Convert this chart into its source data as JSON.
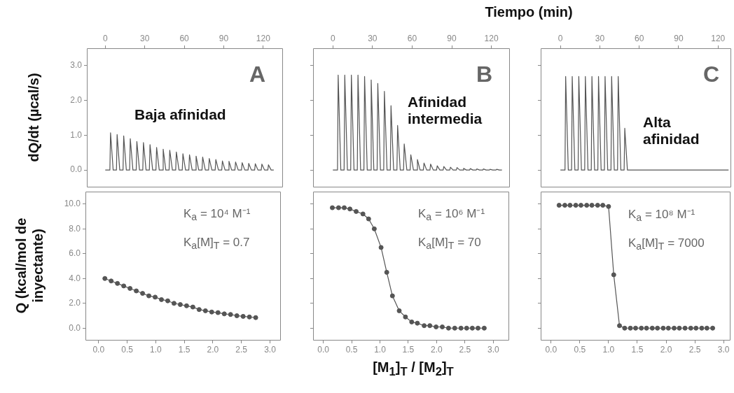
{
  "chart_data": [
    {
      "type": "line",
      "ylabel": "dQ/dt (µcal/s)",
      "annotations": [
        "A",
        "Baja afinidad"
      ],
      "xlim": [
        -14,
        135
      ],
      "xticks": [
        0,
        30,
        60,
        90,
        120
      ],
      "ylim": [
        -0.5,
        3.5
      ],
      "yticks": [
        {
          "value": 0,
          "label": "0.0"
        },
        {
          "value": 1,
          "label": "1.0"
        },
        {
          "value": 2,
          "label": "2.0"
        },
        {
          "value": 3,
          "label": "3.0"
        }
      ],
      "marker": "none",
      "grid": false,
      "series": [
        {
          "color": "#555555",
          "x": [
            0,
            3.5,
            4,
            6,
            8.5,
            9,
            11,
            13.5,
            14,
            16,
            18.5,
            19,
            21,
            23.5,
            24,
            26,
            28.5,
            29,
            31,
            33.5,
            34,
            36,
            38.5,
            39,
            41,
            43.5,
            44,
            46,
            48.5,
            49,
            51,
            53.5,
            54,
            56,
            58.5,
            59,
            61,
            63.5,
            64,
            66,
            68.5,
            69,
            71,
            73.5,
            74,
            76,
            78.5,
            79,
            81,
            83.5,
            84,
            86,
            88.5,
            89,
            91,
            93.5,
            94,
            96,
            98.5,
            99,
            101,
            103.5,
            104,
            106,
            108.5,
            109,
            111,
            113.5,
            114,
            116,
            118.5,
            119,
            121,
            123.5,
            124,
            126,
            128
          ],
          "values": [
            0,
            0,
            1.07,
            0,
            0,
            1.02,
            0,
            0,
            0.98,
            0,
            0,
            0.9,
            0,
            0,
            0.82,
            0,
            0,
            0.79,
            0,
            0,
            0.73,
            0,
            0,
            0.65,
            0,
            0,
            0.6,
            0,
            0,
            0.57,
            0,
            0,
            0.52,
            0,
            0,
            0.47,
            0,
            0,
            0.44,
            0,
            0,
            0.4,
            0,
            0,
            0.37,
            0,
            0,
            0.33,
            0,
            0,
            0.3,
            0,
            0,
            0.26,
            0,
            0,
            0.25,
            0,
            0,
            0.23,
            0,
            0,
            0.21,
            0,
            0,
            0.19,
            0,
            0,
            0.18,
            0,
            0,
            0.17,
            0,
            0,
            0.15,
            0,
            0
          ]
        }
      ]
    },
    {
      "type": "line",
      "xlabel": "Tiempo (min)",
      "annotations": [
        "B",
        "Afinidad intermedia"
      ],
      "xlim": [
        -15,
        134
      ],
      "xticks": [
        0,
        30,
        60,
        90,
        120
      ],
      "ylim": [
        -0.5,
        3.5
      ],
      "yticks": [
        {
          "value": 0,
          "label": null
        },
        {
          "value": 1,
          "label": null
        },
        {
          "value": 2,
          "label": null
        },
        {
          "value": 3,
          "label": null
        }
      ],
      "tick_labels": "x",
      "marker": "none",
      "grid": false,
      "series": [
        {
          "color": "#555555",
          "x": [
            0,
            3.5,
            4,
            6,
            8.5,
            9,
            11,
            13.5,
            14,
            16,
            18.5,
            19,
            21,
            23.5,
            24,
            26,
            28.5,
            29,
            31,
            33.5,
            34,
            36,
            38.5,
            39,
            41,
            43.5,
            44,
            46,
            48.5,
            49,
            51,
            53.5,
            54,
            56,
            58.5,
            59,
            61,
            63.5,
            64,
            66,
            68.5,
            69,
            71,
            73.5,
            74,
            76,
            78.5,
            79,
            81,
            83.5,
            84,
            86,
            88.5,
            89,
            91,
            93.5,
            94,
            96,
            98.5,
            99,
            101,
            103.5,
            104,
            106,
            108.5,
            109,
            111,
            113.5,
            114,
            116,
            118.5,
            119,
            121,
            123.5,
            124,
            126,
            128
          ],
          "values": [
            0,
            0,
            2.73,
            0,
            0,
            2.73,
            0,
            0,
            2.73,
            0,
            0,
            2.73,
            0,
            0,
            2.69,
            0,
            0,
            2.59,
            0,
            0,
            2.49,
            0,
            0,
            2.26,
            0,
            0,
            1.85,
            0,
            0,
            1.28,
            0,
            0,
            0.75,
            0,
            0,
            0.44,
            0,
            0,
            0.3,
            0,
            0,
            0.2,
            0,
            0,
            0.17,
            0,
            0,
            0.12,
            0,
            0,
            0.1,
            0,
            0,
            0.08,
            0,
            0,
            0.07,
            0,
            0,
            0.05,
            0,
            0,
            0.04,
            0,
            0,
            0.03,
            0,
            0,
            0.03,
            0,
            0,
            0.02,
            0,
            0,
            0.02,
            0,
            0
          ]
        }
      ]
    },
    {
      "type": "line",
      "annotations": [
        "C",
        "Alta afinidad"
      ],
      "xlim": [
        -15,
        130
      ],
      "xticks": [
        0,
        30,
        60,
        90,
        120
      ],
      "ylim": [
        -0.5,
        3.5
      ],
      "yticks": [
        {
          "value": 0,
          "label": null
        },
        {
          "value": 1,
          "label": null
        },
        {
          "value": 2,
          "label": null
        },
        {
          "value": 3,
          "label": null
        }
      ],
      "tick_labels": "x",
      "marker": "none",
      "grid": false,
      "series": [
        {
          "color": "#555555",
          "x": [
            0,
            3.5,
            4,
            6,
            8.5,
            9,
            11,
            13.5,
            14,
            16,
            18.5,
            19,
            21,
            23.5,
            24,
            26,
            28.5,
            29,
            31,
            33.5,
            34,
            36,
            38.5,
            39,
            41,
            43.5,
            44,
            46,
            48.5,
            49,
            51,
            128
          ],
          "values": [
            0,
            0,
            2.69,
            0,
            0,
            2.69,
            0,
            0,
            2.69,
            0,
            0,
            2.69,
            0,
            0,
            2.69,
            0,
            0,
            2.69,
            0,
            0,
            2.69,
            0,
            0,
            2.69,
            0,
            0,
            2.69,
            0,
            0,
            1.2,
            0,
            0
          ]
        }
      ]
    },
    {
      "type": "line",
      "ylabel": "Q (kcal/mol de inyectante)",
      "annotations": [
        "K$_{a}$ = 10⁴ M⁻¹",
        "K$_{a}$[M]$_{T}$ = 0.7"
      ],
      "xlim": [
        -0.23,
        3.19
      ],
      "xticks": [
        {
          "value": 0,
          "label": "0.0"
        },
        {
          "value": 0.5,
          "label": "0.5"
        },
        {
          "value": 1,
          "label": "1.0"
        },
        {
          "value": 1.5,
          "label": "1.5"
        },
        {
          "value": 2,
          "label": "2.0"
        },
        {
          "value": 2.5,
          "label": "2.5"
        },
        {
          "value": 3,
          "label": "3.0"
        }
      ],
      "ylim": [
        -1,
        11
      ],
      "yticks": [
        {
          "value": 0,
          "label": "0.0"
        },
        {
          "value": 2,
          "label": "2.0"
        },
        {
          "value": 4,
          "label": "4.0"
        },
        {
          "value": 6,
          "label": "6.0"
        },
        {
          "value": 8,
          "label": "8.0"
        },
        {
          "value": 10,
          "label": "10.0"
        }
      ],
      "marker": "circle",
      "grid": false,
      "series": [
        {
          "color": "#555555",
          "x": [
            0.11,
            0.22,
            0.33,
            0.44,
            0.55,
            0.66,
            0.77,
            0.88,
            0.99,
            1.1,
            1.21,
            1.32,
            1.43,
            1.54,
            1.65,
            1.76,
            1.87,
            1.98,
            2.09,
            2.2,
            2.31,
            2.42,
            2.53,
            2.64,
            2.75
          ],
          "values": [
            4.0,
            3.8,
            3.6,
            3.4,
            3.2,
            3.0,
            2.8,
            2.6,
            2.5,
            2.3,
            2.2,
            2.0,
            1.9,
            1.8,
            1.7,
            1.5,
            1.4,
            1.3,
            1.25,
            1.15,
            1.1,
            1.0,
            0.95,
            0.9,
            0.85
          ]
        }
      ]
    },
    {
      "type": "line",
      "xlabel": "[M$_{1}$]$_{T}$ / [M$_{2}$]$_{T}$",
      "annotations": [
        "K$_{a}$ = 10⁶ M⁻¹",
        "K$_{a}$[M]$_{T}$ = 70"
      ],
      "xlim": [
        -0.18,
        3.28
      ],
      "xticks": [
        {
          "value": 0,
          "label": "0.0"
        },
        {
          "value": 0.5,
          "label": "0.5"
        },
        {
          "value": 1,
          "label": "1.0"
        },
        {
          "value": 1.5,
          "label": "1.5"
        },
        {
          "value": 2,
          "label": "2.0"
        },
        {
          "value": 2.5,
          "label": "2.5"
        },
        {
          "value": 3,
          "label": "3.0"
        }
      ],
      "ylim": [
        -1,
        11
      ],
      "yticks": [
        {
          "value": 0,
          "label": null
        },
        {
          "value": 2,
          "label": null
        },
        {
          "value": 4,
          "label": null
        },
        {
          "value": 6,
          "label": null
        },
        {
          "value": 8,
          "label": null
        },
        {
          "value": 10,
          "label": null
        }
      ],
      "tick_labels": "x",
      "marker": "circle",
      "grid": false,
      "series": [
        {
          "color": "#555555",
          "x": [
            0.16,
            0.27,
            0.37,
            0.47,
            0.58,
            0.7,
            0.8,
            0.9,
            1.02,
            1.12,
            1.22,
            1.34,
            1.45,
            1.56,
            1.66,
            1.78,
            1.88,
            1.99,
            2.1,
            2.21,
            2.32,
            2.43,
            2.53,
            2.63,
            2.73,
            2.84
          ],
          "values": [
            9.7,
            9.7,
            9.7,
            9.6,
            9.4,
            9.2,
            8.8,
            8.0,
            6.5,
            4.5,
            2.6,
            1.4,
            0.9,
            0.5,
            0.4,
            0.2,
            0.2,
            0.1,
            0.1,
            0,
            0,
            0,
            0,
            0,
            0,
            0
          ]
        }
      ]
    },
    {
      "type": "line",
      "annotations": [
        "K$_{a}$ = 10⁸ M⁻¹",
        "K$_{a}$[M]$_{T}$ = 7000"
      ],
      "xlim": [
        -0.18,
        3.12
      ],
      "xticks": [
        {
          "value": 0,
          "label": "0.0"
        },
        {
          "value": 0.5,
          "label": "0.5"
        },
        {
          "value": 1,
          "label": "1.0"
        },
        {
          "value": 1.5,
          "label": "1.5"
        },
        {
          "value": 2,
          "label": "2.0"
        },
        {
          "value": 2.5,
          "label": "2.5"
        },
        {
          "value": 3,
          "label": "3.0"
        }
      ],
      "ylim": [
        -1,
        11
      ],
      "yticks": [
        {
          "value": 0,
          "label": null
        },
        {
          "value": 2,
          "label": null
        },
        {
          "value": 4,
          "label": null
        },
        {
          "value": 6,
          "label": null
        },
        {
          "value": 8,
          "label": null
        },
        {
          "value": 10,
          "label": null
        }
      ],
      "tick_labels": "x",
      "marker": "circle",
      "grid": false,
      "series": [
        {
          "color": "#555555",
          "x": [
            0.14,
            0.24,
            0.33,
            0.43,
            0.52,
            0.62,
            0.71,
            0.81,
            0.9,
            1.0,
            1.09,
            1.19,
            1.28,
            1.38,
            1.47,
            1.57,
            1.66,
            1.76,
            1.85,
            1.95,
            2.04,
            2.14,
            2.23,
            2.33,
            2.43,
            2.52,
            2.62,
            2.71,
            2.81
          ],
          "values": [
            9.9,
            9.9,
            9.9,
            9.9,
            9.9,
            9.9,
            9.9,
            9.9,
            9.9,
            9.8,
            4.3,
            0.2,
            0,
            0,
            0,
            0,
            0,
            0,
            0,
            0,
            0,
            0,
            0,
            0,
            0,
            0,
            0,
            0,
            0
          ]
        }
      ]
    }
  ]
}
